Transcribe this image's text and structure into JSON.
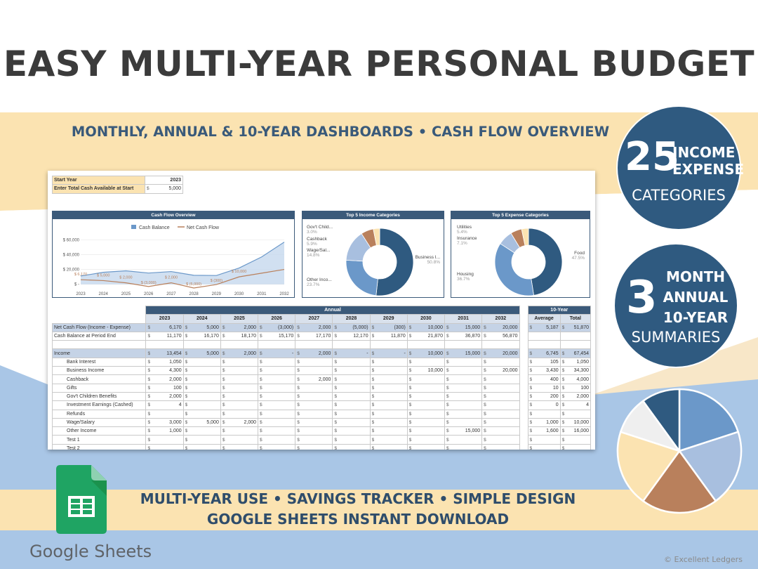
{
  "title": "EASY MULTI-YEAR PERSONAL BUDGET",
  "subtitle": "MONTHLY, ANNUAL & 10-YEAR DASHBOARDS • CASH FLOW OVERVIEW",
  "bottom_line1": "MULTI-YEAR USE • SAVINGS TRACKER • SIMPLE DESIGN",
  "bottom_line2": "GOOGLE SHEETS INSTANT DOWNLOAD",
  "badge1": {
    "number": "25",
    "line1": "INCOME",
    "line2": "EXPENSE",
    "line3": "CATEGORIES"
  },
  "badge2": {
    "number": "3",
    "line1": "MONTH",
    "line2": "ANNUAL",
    "line3": "10-YEAR",
    "line4": "SUMMARIES"
  },
  "google_sheets_label": "Google Sheets",
  "copyright": "© Excellent Ledgers",
  "colors": {
    "navy": "#2f5a80",
    "cream": "#fbe3b1",
    "light_blue": "#a9c6e6",
    "brown": "#b9805c",
    "sheets_green": "#1fa463"
  },
  "decor_pie": {
    "slices": [
      {
        "value": 20,
        "color": "#6b98c9"
      },
      {
        "value": 20,
        "color": "#a8bfdf"
      },
      {
        "value": 20,
        "color": "#b9805c"
      },
      {
        "value": 20,
        "color": "#fbe3b1"
      },
      {
        "value": 10,
        "color": "#efefef"
      },
      {
        "value": 10,
        "color": "#2f5a80"
      }
    ]
  },
  "sheet": {
    "start_year_label": "Start Year",
    "start_year_value": "2023",
    "start_cash_label": "Enter Total Cash Available at Start",
    "start_cash_currency": "$",
    "start_cash_value": "5,000",
    "cash_flow_title": "Cash Flow Overview",
    "income_title": "Top 5 Income Categories",
    "expense_title": "Top 5 Expense Categories",
    "annual_header": "Annual",
    "ten_year_header": "10-Year",
    "average_label": "Average",
    "total_label": "Total",
    "years": [
      "2023",
      "2024",
      "2025",
      "2026",
      "2027",
      "2028",
      "2029",
      "2030",
      "2031",
      "2032"
    ]
  },
  "chart_data": [
    {
      "type": "line",
      "title": "Cash Flow Overview",
      "x": [
        2023,
        2024,
        2025,
        2026,
        2027,
        2028,
        2029,
        2030,
        2031,
        2032
      ],
      "series": [
        {
          "name": "Cash Balance",
          "values": [
            11170,
            16170,
            18170,
            15170,
            17170,
            12170,
            11870,
            21870,
            36870,
            56870
          ]
        },
        {
          "name": "Net Cash Flow",
          "values": [
            6170,
            5000,
            2000,
            -3000,
            2000,
            -5000,
            -300,
            10000,
            15000,
            20000
          ]
        }
      ],
      "data_labels": [
        "$ 6,170",
        "$ 5,000",
        "$ 2,000",
        "$ (3,000)",
        "$ 2,000",
        "$ (5,000)",
        "$ (300)",
        "$ 10,000"
      ],
      "y_ticks": [
        "$ 60,000",
        "$ 40,000",
        "$ 20,000",
        "$ -"
      ],
      "ylim": [
        -5000,
        65000
      ],
      "legend": "top"
    },
    {
      "type": "pie",
      "title": "Top 5 Income Categories",
      "slices": [
        {
          "label": "Business I...",
          "pct": "50.8%",
          "value": 50.8,
          "color": "#2f5a80"
        },
        {
          "label": "Other Inco...",
          "pct": "23.7%",
          "value": 23.7,
          "color": "#6b98c9"
        },
        {
          "label": "Wage/Sal...",
          "pct": "14.8%",
          "value": 14.8,
          "color": "#a8bfdf"
        },
        {
          "label": "Cashback",
          "pct": "5.9%",
          "value": 5.9,
          "color": "#b9805c"
        },
        {
          "label": "Gov't Child...",
          "pct": "3.0%",
          "value": 3.0,
          "color": "#fbe3b1"
        }
      ]
    },
    {
      "type": "pie",
      "title": "Top 5 Expense Categories",
      "slices": [
        {
          "label": "Food",
          "pct": "47.5%",
          "value": 47.5,
          "color": "#2f5a80"
        },
        {
          "label": "Housing",
          "pct": "36.7%",
          "value": 36.7,
          "color": "#6b98c9"
        },
        {
          "label": "Insurance",
          "pct": "7.1%",
          "value": 7.1,
          "color": "#a8bfdf"
        },
        {
          "label": "Utilities",
          "pct": "5.4%",
          "value": 5.4,
          "color": "#b9805c"
        },
        {
          "label": "",
          "pct": "",
          "value": 3.3,
          "color": "#fbe3b1"
        }
      ]
    }
  ],
  "table_rows": [
    {
      "label": "Net Cash Flow (Income - Expense)",
      "style": "hl",
      "values": [
        "6,170",
        "5,000",
        "2,000",
        "(3,000)",
        "2,000",
        "(5,000)",
        "(300)",
        "10,000",
        "15,000",
        "20,000"
      ],
      "avg": "5,187",
      "total": "51,870"
    },
    {
      "label": "Cash Balance at Period End",
      "style": "plain",
      "values": [
        "11,170",
        "16,170",
        "18,170",
        "15,170",
        "17,170",
        "12,170",
        "11,870",
        "21,870",
        "36,870",
        "56,870"
      ],
      "avg": "",
      "total": ""
    },
    {
      "label": "",
      "style": "gap",
      "values": [
        "",
        "",
        "",
        "",
        "",
        "",
        "",
        "",
        "",
        ""
      ],
      "avg": "",
      "total": ""
    },
    {
      "label": "Income",
      "style": "hl",
      "values": [
        "13,454",
        "5,000",
        "2,000",
        "-",
        "2,000",
        "-",
        "-",
        "10,000",
        "15,000",
        "20,000"
      ],
      "avg": "6,745",
      "total": "67,454"
    },
    {
      "label": "Bank Interest",
      "style": "sub",
      "values": [
        "1,050",
        "",
        "",
        "",
        "",
        "",
        "",
        "",
        "",
        ""
      ],
      "avg": "105",
      "total": "1,050"
    },
    {
      "label": "Business Income",
      "style": "sub",
      "values": [
        "4,300",
        "",
        "",
        "",
        "",
        "",
        "",
        "10,000",
        "",
        "20,000"
      ],
      "avg": "3,430",
      "total": "34,300"
    },
    {
      "label": "Cashback",
      "style": "sub",
      "values": [
        "2,000",
        "",
        "",
        "",
        "2,000",
        "",
        "",
        "",
        "",
        ""
      ],
      "avg": "400",
      "total": "4,000"
    },
    {
      "label": "Gifts",
      "style": "sub",
      "values": [
        "100",
        "",
        "",
        "",
        "",
        "",
        "",
        "",
        "",
        ""
      ],
      "avg": "10",
      "total": "100"
    },
    {
      "label": "Gov't Children Benefits",
      "style": "sub",
      "values": [
        "2,000",
        "",
        "",
        "",
        "",
        "",
        "",
        "",
        "",
        ""
      ],
      "avg": "200",
      "total": "2,000"
    },
    {
      "label": "Investment Earnings (Cashed)",
      "style": "sub",
      "values": [
        "4",
        "",
        "",
        "",
        "",
        "",
        "",
        "",
        "",
        ""
      ],
      "avg": "0",
      "total": "4"
    },
    {
      "label": "Refunds",
      "style": "sub",
      "values": [
        "",
        "",
        "",
        "",
        "",
        "",
        "",
        "",
        "",
        ""
      ],
      "avg": "",
      "total": ""
    },
    {
      "label": "Wage/Salary",
      "style": "sub",
      "values": [
        "3,000",
        "5,000",
        "2,000",
        "",
        "",
        "",
        "",
        "",
        "",
        ""
      ],
      "avg": "1,000",
      "total": "10,000"
    },
    {
      "label": "Other Income",
      "style": "sub",
      "values": [
        "1,000",
        "",
        "",
        "",
        "",
        "",
        "",
        "",
        "15,000",
        ""
      ],
      "avg": "1,600",
      "total": "16,000"
    },
    {
      "label": "Test 1",
      "style": "sub",
      "values": [
        "",
        "",
        "",
        "",
        "",
        "",
        "",
        "",
        "",
        ""
      ],
      "avg": "",
      "total": ""
    },
    {
      "label": "Test 2",
      "style": "sub",
      "values": [
        "",
        "",
        "",
        "",
        "",
        "",
        "",
        "",
        "",
        ""
      ],
      "avg": "",
      "total": ""
    }
  ]
}
